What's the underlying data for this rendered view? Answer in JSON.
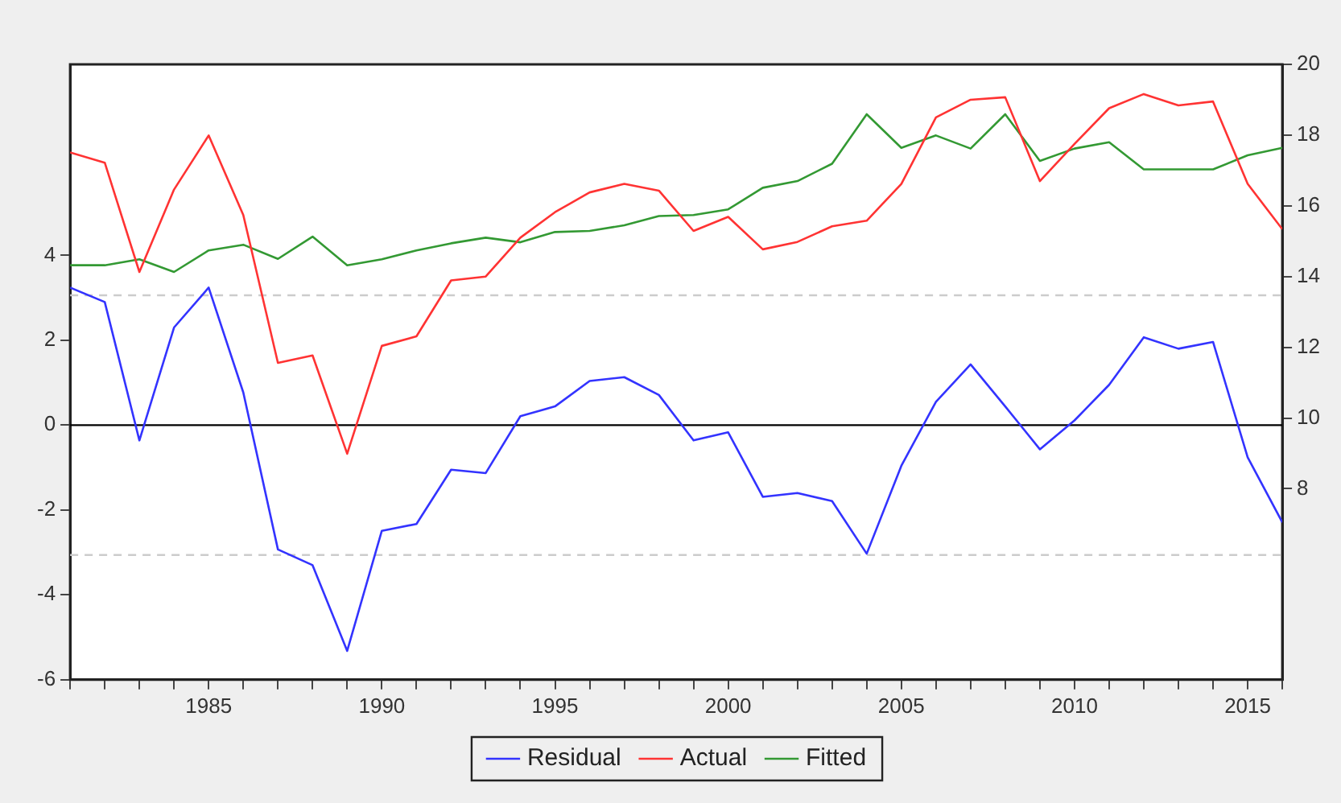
{
  "chart_data": {
    "type": "line",
    "x": [
      1981,
      1982,
      1983,
      1984,
      1985,
      1986,
      1987,
      1988,
      1989,
      1990,
      1991,
      1992,
      1993,
      1994,
      1995,
      1996,
      1997,
      1998,
      1999,
      2000,
      2001,
      2002,
      2003,
      2004,
      2005,
      2006,
      2007,
      2008,
      2009,
      2010,
      2011,
      2012,
      2013,
      2014,
      2015,
      2016
    ],
    "series": [
      {
        "name": "Residual",
        "color": "#3333ff",
        "values": [
          3.24,
          2.9,
          -0.36,
          2.3,
          3.24,
          0.77,
          -2.93,
          -3.3,
          -5.32,
          -2.49,
          -2.33,
          -1.05,
          -1.13,
          0.21,
          0.44,
          1.04,
          1.13,
          0.71,
          -0.36,
          -0.17,
          -1.69,
          -1.6,
          -1.79,
          -3.03,
          -0.96,
          0.55,
          1.43,
          0.44,
          -0.57,
          0.11,
          0.95,
          2.07,
          1.8,
          1.96,
          -0.76,
          -2.29
        ]
      },
      {
        "name": "Actual",
        "color": "#ff3333",
        "axis": "y2",
        "values": [
          17.51,
          17.22,
          14.13,
          16.46,
          17.99,
          15.74,
          11.56,
          11.77,
          8.99,
          12.04,
          12.31,
          13.89,
          14.0,
          15.1,
          15.82,
          16.38,
          16.62,
          16.43,
          15.29,
          15.69,
          14.77,
          14.98,
          15.42,
          15.58,
          16.62,
          18.5,
          19.0,
          19.07,
          16.7,
          17.75,
          18.76,
          19.16,
          18.84,
          18.95,
          16.62,
          15.34
        ]
      },
      {
        "name": "Fitted",
        "color": "#339933",
        "axis": "y2",
        "values": [
          14.32,
          14.32,
          14.49,
          14.13,
          14.74,
          14.9,
          14.5,
          15.13,
          14.32,
          14.49,
          14.74,
          14.94,
          15.1,
          14.97,
          15.26,
          15.29,
          15.45,
          15.71,
          15.74,
          15.9,
          16.51,
          16.7,
          17.19,
          18.59,
          17.64,
          17.99,
          17.62,
          18.59,
          17.27,
          17.62,
          17.8,
          17.03,
          17.03,
          17.03,
          17.43,
          17.64
        ]
      }
    ],
    "xlim": [
      1981,
      2016
    ],
    "xticks": [
      {
        "value": 1981,
        "label": null
      },
      {
        "value": 1982,
        "label": null
      },
      {
        "value": 1983,
        "label": null
      },
      {
        "value": 1984,
        "label": null
      },
      1985,
      {
        "value": 1986,
        "label": null
      },
      {
        "value": 1987,
        "label": null
      },
      {
        "value": 1988,
        "label": null
      },
      {
        "value": 1989,
        "label": null
      },
      1990,
      {
        "value": 1991,
        "label": null
      },
      {
        "value": 1992,
        "label": null
      },
      {
        "value": 1993,
        "label": null
      },
      {
        "value": 1994,
        "label": null
      },
      1995,
      {
        "value": 1996,
        "label": null
      },
      {
        "value": 1997,
        "label": null
      },
      {
        "value": 1998,
        "label": null
      },
      {
        "value": 1999,
        "label": null
      },
      2000,
      {
        "value": 2001,
        "label": null
      },
      {
        "value": 2002,
        "label": null
      },
      {
        "value": 2003,
        "label": null
      },
      {
        "value": 2004,
        "label": null
      },
      2005,
      {
        "value": 2006,
        "label": null
      },
      {
        "value": 2007,
        "label": null
      },
      {
        "value": 2008,
        "label": null
      },
      {
        "value": 2009,
        "label": null
      },
      2010,
      {
        "value": 2011,
        "label": null
      },
      {
        "value": 2012,
        "label": null
      },
      {
        "value": 2013,
        "label": null
      },
      {
        "value": 2014,
        "label": null
      },
      2015,
      {
        "value": 2016,
        "label": null
      }
    ],
    "ylim": [
      -6,
      8.5
    ],
    "yticks": [
      -6,
      -4,
      -2,
      0,
      2,
      4
    ],
    "y2lim": [
      2.6,
      20
    ],
    "y2ticks": [
      8,
      10,
      12,
      14,
      16,
      18,
      20
    ],
    "ref_lines": [
      {
        "axis": "y",
        "value": 0,
        "color": "#000000",
        "line_style": "solid"
      },
      {
        "axis": "y",
        "value": 3.06,
        "color": "#cccccc",
        "line_style": "dashed"
      },
      {
        "axis": "y",
        "value": -3.06,
        "color": "#cccccc",
        "line_style": "dashed"
      }
    ],
    "legend": "bottom",
    "grid": false,
    "marker": "none",
    "line_style": "solid"
  }
}
